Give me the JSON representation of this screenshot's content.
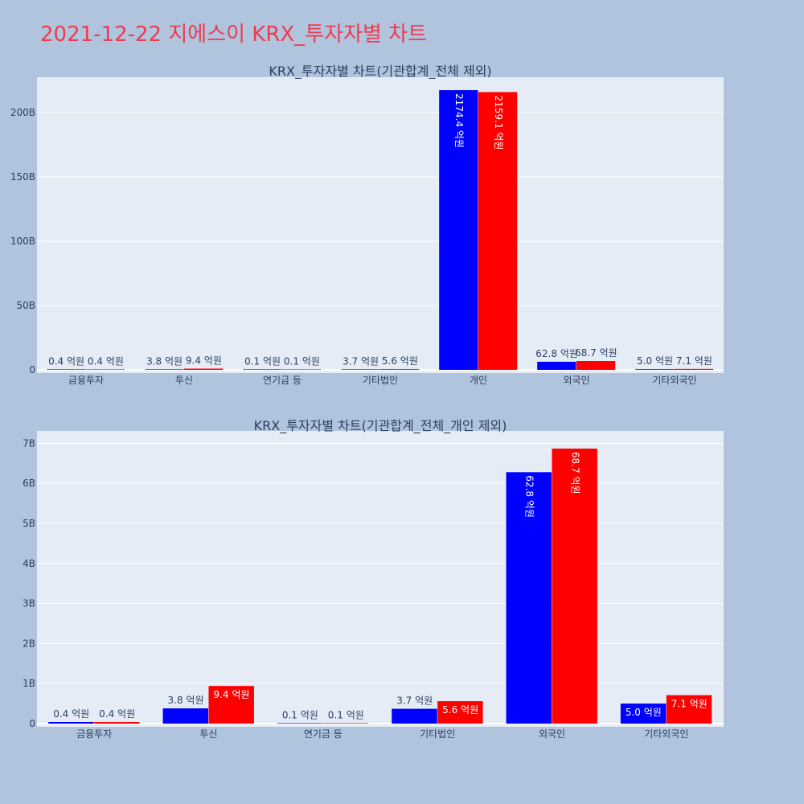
{
  "page": {
    "title": "2021-12-22 지에스이 KRX_투자자별 차트"
  },
  "colors": {
    "background": "#b0c4de",
    "plot_background": "#e5ecf6",
    "buy": "#0000ff",
    "sell": "#ff0000",
    "title": "#ef3b4f"
  },
  "chart_data": [
    {
      "type": "bar",
      "title": "KRX_투자자별 차트(기관합계_전체 제외)",
      "categories": [
        "금융투자",
        "투신",
        "연기금 등",
        "기타법인",
        "개인",
        "외국인",
        "기타외국인"
      ],
      "series": [
        {
          "color": "#0000ff",
          "values": [
            40000000,
            380000000,
            10000000,
            370000000,
            217440000000,
            6280000000,
            500000000
          ],
          "labels": [
            "0.4 억원",
            "3.8 억원",
            "0.1 억원",
            "3.7 억원",
            "2174.4 억원",
            "62.8 억원",
            "5.0 억원"
          ]
        },
        {
          "color": "#ff0000",
          "values": [
            40000000,
            940000000,
            10000000,
            560000000,
            215910000000,
            6870000000,
            710000000
          ],
          "labels": [
            "0.4 억원",
            "9.4 억원",
            "0.1 억원",
            "5.6 억원",
            "2159.1 억원",
            "68.7 억원",
            "7.1 억원"
          ]
        }
      ],
      "ylim": [
        0,
        225000000000
      ],
      "yticks": [
        0,
        50000000000,
        100000000000,
        150000000000,
        200000000000
      ],
      "yticklabels": [
        "0",
        "50B",
        "100B",
        "150B",
        "200B"
      ],
      "grid": true,
      "legend": "none"
    },
    {
      "type": "bar",
      "title": "KRX_투자자별 차트(기관합계_전체_개인 제외)",
      "categories": [
        "금융투자",
        "투신",
        "연기금 등",
        "기타법인",
        "외국인",
        "기타외국인"
      ],
      "series": [
        {
          "color": "#0000ff",
          "values": [
            40000000,
            380000000,
            10000000,
            370000000,
            6280000000,
            500000000
          ],
          "labels": [
            "0.4 억원",
            "3.8 억원",
            "0.1 억원",
            "3.7 억원",
            "62.8 억원",
            "5.0 억원"
          ]
        },
        {
          "color": "#ff0000",
          "values": [
            40000000,
            940000000,
            10000000,
            560000000,
            6870000000,
            710000000
          ],
          "labels": [
            "0.4 억원",
            "9.4 억원",
            "0.1 억원",
            "5.6 억원",
            "68.7 억원",
            "7.1 억원"
          ]
        }
      ],
      "ylim": [
        0,
        7230000000
      ],
      "yticks": [
        0,
        1000000000,
        2000000000,
        3000000000,
        4000000000,
        5000000000,
        6000000000,
        7000000000
      ],
      "yticklabels": [
        "0",
        "1B",
        "2B",
        "3B",
        "4B",
        "5B",
        "6B",
        "7B"
      ],
      "grid": true,
      "legend": "none"
    }
  ]
}
